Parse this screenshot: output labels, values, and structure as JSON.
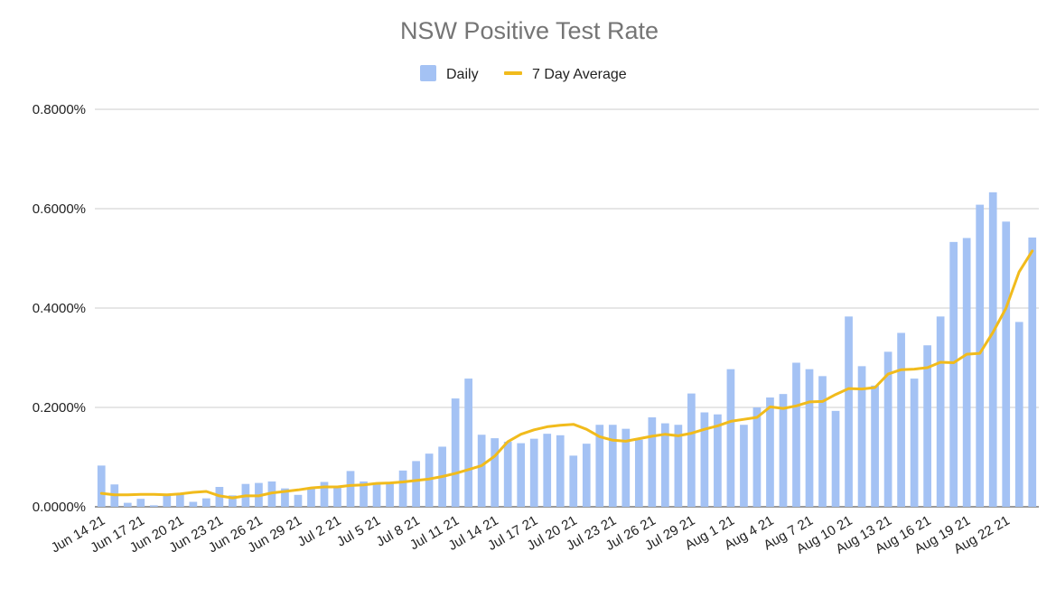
{
  "chart_data": {
    "type": "bar",
    "title": "NSW Positive Test Rate",
    "legend": {
      "position": "top",
      "entries": [
        "Daily",
        "7 Day Average"
      ]
    },
    "ylim": [
      0,
      0.008
    ],
    "grid": true,
    "y_ticks": [
      {
        "value": 0.0,
        "label": "0.0000%"
      },
      {
        "value": 0.002,
        "label": "0.2000%"
      },
      {
        "value": 0.004,
        "label": "0.4000%"
      },
      {
        "value": 0.006,
        "label": "0.6000%"
      },
      {
        "value": 0.008,
        "label": "0.8000%"
      }
    ],
    "categories": [
      "Jun 14 21",
      "Jun 15 21",
      "Jun 16 21",
      "Jun 17 21",
      "Jun 18 21",
      "Jun 19 21",
      "Jun 20 21",
      "Jun 21 21",
      "Jun 22 21",
      "Jun 23 21",
      "Jun 24 21",
      "Jun 25 21",
      "Jun 26 21",
      "Jun 27 21",
      "Jun 28 21",
      "Jun 29 21",
      "Jun 30 21",
      "Jul 1 21",
      "Jul 2 21",
      "Jul 3 21",
      "Jul 4 21",
      "Jul 5 21",
      "Jul 6 21",
      "Jul 7 21",
      "Jul 8 21",
      "Jul 9 21",
      "Jul 10 21",
      "Jul 11 21",
      "Jul 12 21",
      "Jul 13 21",
      "Jul 14 21",
      "Jul 15 21",
      "Jul 16 21",
      "Jul 17 21",
      "Jul 18 21",
      "Jul 19 21",
      "Jul 20 21",
      "Jul 21 21",
      "Jul 22 21",
      "Jul 23 21",
      "Jul 24 21",
      "Jul 25 21",
      "Jul 26 21",
      "Jul 27 21",
      "Jul 28 21",
      "Jul 29 21",
      "Jul 30 21",
      "Jul 31 21",
      "Aug 1 21",
      "Aug 2 21",
      "Aug 3 21",
      "Aug 4 21",
      "Aug 5 21",
      "Aug 6 21",
      "Aug 7 21",
      "Aug 8 21",
      "Aug 9 21",
      "Aug 10 21",
      "Aug 11 21",
      "Aug 12 21",
      "Aug 13 21",
      "Aug 14 21",
      "Aug 15 21",
      "Aug 16 21",
      "Aug 17 21",
      "Aug 18 21",
      "Aug 19 21",
      "Aug 20 21",
      "Aug 21 21",
      "Aug 22 21",
      "Aug 23 21",
      "Aug 24 21"
    ],
    "x_tick_labels": [
      "Jun 14 21",
      "Jun 17 21",
      "Jun 20 21",
      "Jun 23 21",
      "Jun 26 21",
      "Jun 29 21",
      "Jul 2 21",
      "Jul 5 21",
      "Jul 8 21",
      "Jul 11 21",
      "Jul 14 21",
      "Jul 17 21",
      "Jul 20 21",
      "Jul 23 21",
      "Jul 26 21",
      "Jul 29 21",
      "Aug 1 21",
      "Aug 4 21",
      "Aug 7 21",
      "Aug 10 21",
      "Aug 13 21",
      "Aug 16 21",
      "Aug 19 21",
      "Aug 22 21"
    ],
    "series": [
      {
        "name": "Daily",
        "type": "bar",
        "color": "#a4c2f4",
        "values": [
          0.00083,
          0.00045,
          8e-05,
          0.00016,
          3e-05,
          0.00024,
          0.00026,
          0.0001,
          0.00017,
          0.0004,
          0.00023,
          0.00046,
          0.00048,
          0.00051,
          0.00037,
          0.00024,
          0.00038,
          0.0005,
          0.00039,
          0.00072,
          0.00051,
          0.00049,
          0.00049,
          0.00073,
          0.00092,
          0.00107,
          0.00121,
          0.00218,
          0.00258,
          0.00145,
          0.00138,
          0.00131,
          0.00128,
          0.00137,
          0.00147,
          0.00144,
          0.00103,
          0.00127,
          0.00165,
          0.00165,
          0.00157,
          0.00135,
          0.0018,
          0.00168,
          0.00165,
          0.00228,
          0.0019,
          0.00186,
          0.00277,
          0.00165,
          0.002,
          0.0022,
          0.00227,
          0.0029,
          0.00277,
          0.00263,
          0.00193,
          0.00383,
          0.00283,
          0.00244,
          0.00312,
          0.0035,
          0.00258,
          0.00325,
          0.00383,
          0.00533,
          0.00541,
          0.00608,
          0.00633,
          0.00574,
          0.00372,
          0.00542
        ]
      },
      {
        "name": "7 Day Average",
        "type": "line",
        "color": "#f1bb1c",
        "values": [
          0.00027,
          0.00024,
          0.00024,
          0.00025,
          0.00025,
          0.00024,
          0.00026,
          0.00029,
          0.00031,
          0.00022,
          0.00018,
          0.00022,
          0.00022,
          0.00028,
          0.00031,
          0.00034,
          0.00038,
          0.0004,
          0.0004,
          0.00043,
          0.00044,
          0.00047,
          0.00048,
          0.0005,
          0.00053,
          0.00056,
          0.00061,
          0.00067,
          0.00075,
          0.00083,
          0.00102,
          0.00131,
          0.00146,
          0.00155,
          0.00161,
          0.00164,
          0.00166,
          0.00156,
          0.00141,
          0.00134,
          0.00132,
          0.00137,
          0.00142,
          0.00146,
          0.00143,
          0.00148,
          0.00156,
          0.00163,
          0.00172,
          0.00176,
          0.0018,
          0.00201,
          0.00198,
          0.00203,
          0.00211,
          0.00212,
          0.00226,
          0.00238,
          0.00237,
          0.0024,
          0.00267,
          0.00276,
          0.00277,
          0.0028,
          0.00291,
          0.0029,
          0.00307,
          0.00309,
          0.00351,
          0.004,
          0.00473,
          0.00515
        ]
      }
    ]
  }
}
